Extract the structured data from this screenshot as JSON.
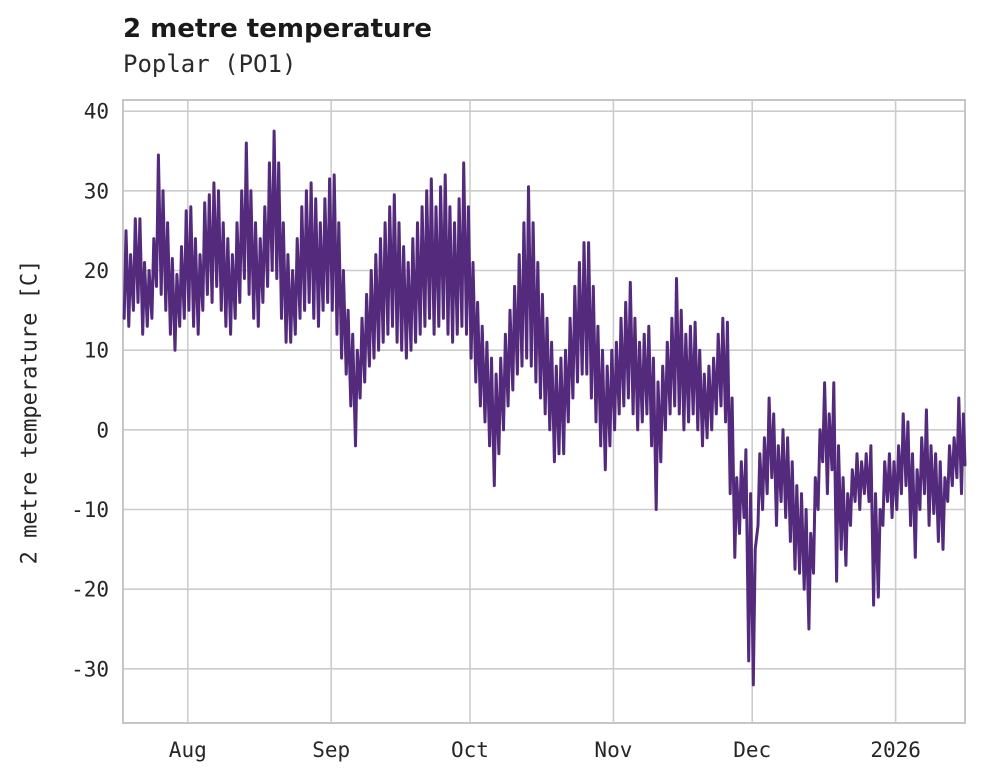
{
  "header": {
    "title": "2 metre temperature",
    "subtitle": "Poplar (PO1)"
  },
  "colors": {
    "line": "#542a7c",
    "grid": "#cccccc",
    "plot_border": "#c6c6c6",
    "text": "#262626",
    "background": "#ffffff"
  },
  "chart_data": {
    "type": "line",
    "title": "2 metre temperature",
    "subtitle": "Poplar (PO1)",
    "xlabel": "",
    "ylabel": "2 metre temperature [C]",
    "grid": true,
    "legend": "none",
    "ylim": [
      -36.8,
      41.4
    ],
    "yticks": [
      40,
      30,
      20,
      10,
      0,
      -10,
      -20,
      -30
    ],
    "x_unit": "days from series start (mid-July) to mid-January",
    "x_range_days": [
      0,
      182
    ],
    "x_ticks": [
      {
        "label": "Aug",
        "day": 14
      },
      {
        "label": "Sep",
        "day": 45
      },
      {
        "label": "Oct",
        "day": 75
      },
      {
        "label": "Nov",
        "day": 106
      },
      {
        "label": "Dec",
        "day": 136
      },
      {
        "label": "2026",
        "day": 167
      }
    ],
    "series": [
      {
        "name": "2 metre temperature",
        "color": "#542a7c",
        "note": "diurnal min/max pairs per day, degrees C, read from plot",
        "daily_min_max": [
          [
            14,
            25
          ],
          [
            13,
            22
          ],
          [
            15,
            26.5
          ],
          [
            16,
            26.5
          ],
          [
            12,
            21
          ],
          [
            13,
            20
          ],
          [
            14,
            24
          ],
          [
            18,
            34.5
          ],
          [
            17,
            30
          ],
          [
            15,
            26
          ],
          [
            12,
            21.5
          ],
          [
            10,
            19.5
          ],
          [
            13,
            23
          ],
          [
            14,
            27.5
          ],
          [
            15,
            28
          ],
          [
            13,
            24
          ],
          [
            12,
            22
          ],
          [
            15,
            28.5
          ],
          [
            17,
            29.5
          ],
          [
            16,
            31
          ],
          [
            18,
            30
          ],
          [
            15,
            26
          ],
          [
            13,
            24
          ],
          [
            12,
            22
          ],
          [
            14,
            26
          ],
          [
            16,
            30
          ],
          [
            19,
            36
          ],
          [
            17,
            30
          ],
          [
            14,
            26
          ],
          [
            13,
            24
          ],
          [
            16,
            28
          ],
          [
            18,
            33.5
          ],
          [
            20,
            37.5
          ],
          [
            19,
            33.5
          ],
          [
            14,
            26
          ],
          [
            11,
            22
          ],
          [
            11,
            20
          ],
          [
            12,
            24
          ],
          [
            14,
            28
          ],
          [
            15,
            30
          ],
          [
            16,
            31
          ],
          [
            14,
            29
          ],
          [
            13,
            26
          ],
          [
            15,
            29
          ],
          [
            16,
            31.5
          ],
          [
            15,
            32
          ],
          [
            12,
            26
          ],
          [
            9,
            20
          ],
          [
            7,
            15
          ],
          [
            3,
            12
          ],
          [
            -2,
            10
          ],
          [
            4,
            14
          ],
          [
            6,
            17
          ],
          [
            8,
            20
          ],
          [
            9,
            22
          ],
          [
            10,
            24
          ],
          [
            11,
            26
          ],
          [
            12,
            28
          ],
          [
            13,
            29.5
          ],
          [
            11,
            26
          ],
          [
            10,
            23
          ],
          [
            9,
            21
          ],
          [
            10,
            24
          ],
          [
            11,
            26
          ],
          [
            12,
            28
          ],
          [
            13,
            30
          ],
          [
            14,
            31.5
          ],
          [
            12,
            28
          ],
          [
            13,
            30.5
          ],
          [
            14,
            32
          ],
          [
            12,
            28
          ],
          [
            11,
            26
          ],
          [
            12,
            29
          ],
          [
            13,
            33.5
          ],
          [
            12,
            28
          ],
          [
            9,
            21
          ],
          [
            6,
            16
          ],
          [
            3,
            13
          ],
          [
            1,
            11
          ],
          [
            -2,
            9
          ],
          [
            -7,
            7
          ],
          [
            -3,
            9
          ],
          [
            0,
            12
          ],
          [
            3,
            15
          ],
          [
            5,
            18
          ],
          [
            7,
            22
          ],
          [
            8,
            26
          ],
          [
            9,
            30.5
          ],
          [
            8,
            26
          ],
          [
            6,
            21
          ],
          [
            4,
            17
          ],
          [
            2,
            14
          ],
          [
            0,
            11
          ],
          [
            -4,
            8
          ],
          [
            -3,
            9
          ],
          [
            -3,
            10
          ],
          [
            1,
            14
          ],
          [
            4,
            18
          ],
          [
            6,
            21
          ],
          [
            7,
            23.5
          ],
          [
            7,
            23.5
          ],
          [
            4,
            18
          ],
          [
            1,
            13
          ],
          [
            -2,
            10
          ],
          [
            -5,
            8
          ],
          [
            -2,
            10
          ],
          [
            0,
            11
          ],
          [
            2,
            14
          ],
          [
            3,
            16
          ],
          [
            4,
            18.5
          ],
          [
            2,
            14
          ],
          [
            0,
            11
          ],
          [
            1,
            12
          ],
          [
            2,
            13
          ],
          [
            -2,
            9
          ],
          [
            -10,
            6
          ],
          [
            -4,
            8
          ],
          [
            0,
            11
          ],
          [
            2,
            14
          ],
          [
            3,
            19
          ],
          [
            2,
            15
          ],
          [
            0,
            12
          ],
          [
            1,
            13
          ],
          [
            2,
            13.5
          ],
          [
            0,
            10
          ],
          [
            -2,
            7
          ],
          [
            -1,
            8
          ],
          [
            0,
            9
          ],
          [
            2,
            12
          ],
          [
            3,
            14
          ],
          [
            1,
            13.5
          ],
          [
            -8,
            4
          ],
          [
            -16,
            -6
          ],
          [
            -13,
            -4
          ],
          [
            -11,
            -2.5
          ],
          [
            -29,
            -8
          ],
          [
            -32,
            -15
          ],
          [
            -12,
            -3
          ],
          [
            -10,
            -1
          ],
          [
            -8,
            4
          ],
          [
            -6,
            2
          ],
          [
            -12,
            -2
          ],
          [
            -9,
            0
          ],
          [
            -11,
            -1
          ],
          [
            -14,
            -4
          ],
          [
            -17.5,
            -7
          ],
          [
            -18,
            -8
          ],
          [
            -20,
            -10
          ],
          [
            -25,
            -13
          ],
          [
            -18,
            -6
          ],
          [
            -10,
            0
          ],
          [
            -4,
            5.9
          ],
          [
            -8,
            2
          ],
          [
            -5,
            5.9
          ],
          [
            -19,
            -2
          ],
          [
            -15,
            -6
          ],
          [
            -17,
            -8
          ],
          [
            -12,
            -5
          ],
          [
            -9,
            -3
          ],
          [
            -10,
            -4
          ],
          [
            -8,
            -3
          ],
          [
            -9,
            -2
          ],
          [
            -22,
            -8
          ],
          [
            -21,
            -10
          ],
          [
            -12,
            -4
          ],
          [
            -9,
            -3
          ],
          [
            -11,
            -4
          ],
          [
            -10,
            -2
          ],
          [
            -8,
            2
          ],
          [
            -7,
            1
          ],
          [
            -12,
            -3
          ],
          [
            -16,
            -5
          ],
          [
            -10,
            -1
          ],
          [
            -8,
            2.5
          ],
          [
            -12,
            -2
          ],
          [
            -10.5,
            -3
          ],
          [
            -14,
            -4
          ],
          [
            -15,
            -6
          ],
          [
            -9,
            -2
          ],
          [
            -7,
            -1
          ],
          [
            -6,
            4
          ],
          [
            -8,
            2
          ],
          [
            -4.4,
            -4.4
          ]
        ]
      }
    ]
  }
}
